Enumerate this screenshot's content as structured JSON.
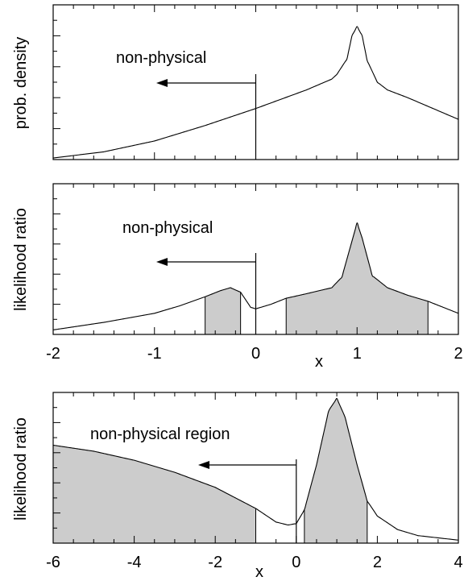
{
  "chart_data": [
    {
      "type": "line",
      "ylabel": "prob. density",
      "xlim": [
        -2,
        2
      ],
      "ylim": [
        0,
        1
      ],
      "annotation": {
        "text": "non-physical",
        "arrow": "left",
        "boundary_x": 0
      },
      "series": [
        {
          "x": [
            -2,
            -1.5,
            -1,
            -0.5,
            0,
            0.25,
            0.5,
            0.75,
            0.8,
            0.9,
            0.95,
            1.0,
            1.05,
            1.1,
            1.2,
            1.3,
            1.5,
            1.75,
            2
          ],
          "y": [
            0.01,
            0.05,
            0.12,
            0.22,
            0.33,
            0.39,
            0.45,
            0.52,
            0.55,
            0.65,
            0.8,
            0.86,
            0.8,
            0.64,
            0.5,
            0.45,
            0.4,
            0.33,
            0.26
          ]
        }
      ]
    },
    {
      "type": "area",
      "ylabel": "likelihood ratio",
      "xlabel": "x",
      "xlim": [
        -2,
        2
      ],
      "ylim": [
        0,
        1
      ],
      "xticks": [
        "-2",
        "-1",
        "0",
        "1",
        "2"
      ],
      "annotation": {
        "text": "non-physical",
        "arrow": "left",
        "boundary_x": 0
      },
      "shaded_intervals": [
        [
          -0.5,
          -0.15
        ],
        [
          0.3,
          1.7
        ]
      ],
      "series": [
        {
          "x": [
            -2,
            -1.5,
            -1,
            -0.75,
            -0.5,
            -0.35,
            -0.25,
            -0.15,
            -0.05,
            0,
            0.15,
            0.3,
            0.5,
            0.75,
            0.85,
            0.95,
            1.0,
            1.05,
            1.15,
            1.3,
            1.5,
            1.7,
            2
          ],
          "y": [
            0.03,
            0.08,
            0.14,
            0.19,
            0.25,
            0.29,
            0.31,
            0.28,
            0.18,
            0.17,
            0.2,
            0.24,
            0.27,
            0.31,
            0.38,
            0.62,
            0.74,
            0.64,
            0.39,
            0.31,
            0.26,
            0.22,
            0.14
          ]
        }
      ]
    },
    {
      "type": "area",
      "ylabel": "likelihood ratio",
      "xlabel": "x",
      "xlim": [
        -6,
        4
      ],
      "ylim": [
        0,
        1
      ],
      "xticks": [
        "-6",
        "-4",
        "-2",
        "0",
        "2",
        "4"
      ],
      "annotation": {
        "text": "non-physical region",
        "arrow": "left",
        "boundary_x": 0
      },
      "shaded_intervals": [
        [
          -6,
          -1
        ],
        [
          0.2,
          1.75
        ]
      ],
      "series": [
        {
          "x": [
            -6,
            -5,
            -4,
            -3,
            -2,
            -1.5,
            -1,
            -0.5,
            -0.2,
            0,
            0.2,
            0.5,
            0.8,
            1.0,
            1.2,
            1.5,
            1.75,
            2,
            2.5,
            3,
            4
          ],
          "y": [
            0.65,
            0.61,
            0.55,
            0.47,
            0.37,
            0.3,
            0.23,
            0.14,
            0.12,
            0.13,
            0.22,
            0.52,
            0.88,
            0.96,
            0.84,
            0.52,
            0.28,
            0.18,
            0.09,
            0.05,
            0.02
          ]
        }
      ]
    }
  ]
}
